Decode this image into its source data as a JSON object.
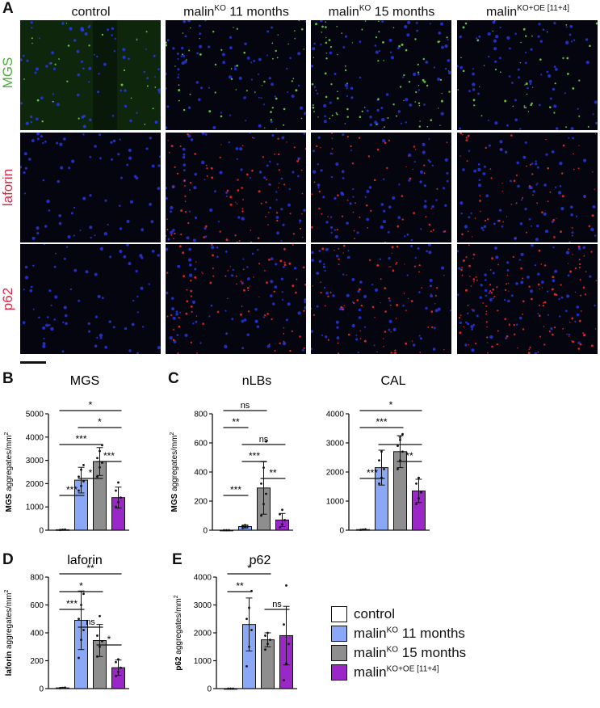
{
  "panel_A": {
    "letter": "A",
    "columns": [
      {
        "base": "control",
        "sup": "",
        "suffix": ""
      },
      {
        "base": "malin",
        "sup": "KO",
        "suffix": " 11 months"
      },
      {
        "base": "malin",
        "sup": "KO",
        "suffix": " 15 months"
      },
      {
        "base": "malin",
        "sup": "KO+OE [11+4]",
        "suffix": ""
      }
    ],
    "rows": [
      {
        "label": "MGS",
        "color": "#4caf3a",
        "dot": "#6fe04a"
      },
      {
        "label": "laforin",
        "color": "#d62a47",
        "dot": "#ff2a2a"
      },
      {
        "label": "p62",
        "color": "#d62a47",
        "dot": "#ff2a2a"
      }
    ],
    "nucleus_color": "#2a3cff",
    "signal_density": [
      [
        0.15,
        0.35,
        0.55,
        0.3
      ],
      [
        0.0,
        0.55,
        0.35,
        0.4
      ],
      [
        0.0,
        0.5,
        0.5,
        0.8
      ]
    ]
  },
  "legend": {
    "items": [
      {
        "base": "control",
        "sup": "",
        "suffix": "",
        "color": "#ffffff"
      },
      {
        "base": "malin",
        "sup": "KO",
        "suffix": " 11 months",
        "color": "#8aa8f5"
      },
      {
        "base": "malin",
        "sup": "KO",
        "suffix": " 15 months",
        "color": "#8e8e8e"
      },
      {
        "base": "malin",
        "sup": "KO+OE [11+4]",
        "suffix": "",
        "color": "#9b27c8"
      }
    ]
  },
  "chart_data": [
    {
      "panel": "B",
      "type": "bar",
      "title": "MGS",
      "ylabel_bold": "MGS",
      "ylabel_rest": " aggregates/mm",
      "ylabel_sup": "2",
      "ylim": [
        0,
        5000
      ],
      "yticks": [
        0,
        1000,
        2000,
        3000,
        4000,
        5000
      ],
      "categories": [
        "control",
        "malinKO 11 months",
        "malinKO 15 months",
        "malinKO+OE [11+4]"
      ],
      "values": [
        20,
        2150,
        2950,
        1400
      ],
      "errors": [
        10,
        550,
        600,
        450
      ],
      "points": [
        [
          10,
          20,
          30
        ],
        [
          1700,
          1900,
          2100,
          2300,
          2600,
          2800
        ],
        [
          2300,
          2700,
          2900,
          3100,
          3400,
          3650
        ],
        [
          1000,
          1200,
          1400,
          1700,
          2050
        ]
      ],
      "significance": [
        {
          "from": 0,
          "to": 3,
          "label": "*"
        },
        {
          "from": 1,
          "to": 3,
          "label": "*"
        },
        {
          "from": 0,
          "to": 2,
          "label": "***"
        },
        {
          "from": 2,
          "to": 3,
          "label": "***"
        },
        {
          "from": 1,
          "to": 2,
          "label": "*"
        },
        {
          "from": 0,
          "to": 1,
          "label": "***"
        }
      ]
    },
    {
      "panel": "C",
      "type": "bar",
      "title": "nLBs",
      "ylabel_bold": "MGS",
      "ylabel_rest": " aggregates/mm",
      "ylabel_sup": "2",
      "ylim": [
        0,
        800
      ],
      "yticks": [
        0,
        200,
        400,
        600,
        800
      ],
      "categories": [
        "control",
        "malinKO 11 months",
        "malinKO 15 months",
        "malinKO+OE [11+4]"
      ],
      "values": [
        0,
        25,
        290,
        70
      ],
      "errors": [
        0,
        10,
        180,
        45
      ],
      "points": [
        [
          0,
          0,
          0
        ],
        [
          15,
          20,
          25,
          30,
          35
        ],
        [
          100,
          180,
          250,
          320,
          430,
          610
        ],
        [
          20,
          40,
          70,
          110,
          140
        ]
      ],
      "significance": [
        {
          "from": 0,
          "to": 2,
          "label": "ns"
        },
        {
          "from": 0,
          "to": 1,
          "label": "**"
        },
        {
          "from": 1,
          "to": 3,
          "label": "ns"
        },
        {
          "from": 1,
          "to": 2,
          "label": "***"
        },
        {
          "from": 2,
          "to": 3,
          "label": "**"
        },
        {
          "from": 0,
          "to": 1,
          "label": "***"
        }
      ]
    },
    {
      "panel": "",
      "type": "bar",
      "title": "CAL",
      "ylabel_bold": "",
      "ylabel_rest": "",
      "ylabel_sup": "",
      "ylim": [
        0,
        4000
      ],
      "yticks": [
        0,
        1000,
        2000,
        3000,
        4000
      ],
      "categories": [
        "control",
        "malinKO 11 months",
        "malinKO 15 months",
        "malinKO+OE [11+4]"
      ],
      "values": [
        20,
        2150,
        2700,
        1350
      ],
      "errors": [
        10,
        600,
        550,
        400
      ],
      "points": [
        [
          10,
          20,
          30
        ],
        [
          1600,
          1800,
          2100,
          2400,
          2700
        ],
        [
          2100,
          2400,
          2700,
          2900,
          3100,
          3300
        ],
        [
          900,
          1100,
          1300,
          1600,
          1800
        ]
      ],
      "significance": [
        {
          "from": 0,
          "to": 3,
          "label": "*"
        },
        {
          "from": 0,
          "to": 2,
          "label": "***"
        },
        {
          "from": 1,
          "to": 3,
          "label": "*"
        },
        {
          "from": 2,
          "to": 3,
          "label": "**"
        },
        {
          "from": 0,
          "to": 1,
          "label": "***"
        }
      ]
    },
    {
      "panel": "D",
      "type": "bar",
      "title": "laforin",
      "ylabel_bold": "laforin",
      "ylabel_rest": " aggregates/mm",
      "ylabel_sup": "2",
      "ylim": [
        0,
        800
      ],
      "yticks": [
        0,
        200,
        400,
        600,
        800
      ],
      "categories": [
        "control",
        "malinKO 11 months",
        "malinKO 15 months",
        "malinKO+OE [11+4]"
      ],
      "values": [
        5,
        490,
        345,
        150
      ],
      "errors": [
        3,
        210,
        115,
        55
      ],
      "points": [
        [
          3,
          5,
          7
        ],
        [
          220,
          350,
          420,
          500,
          600,
          680
        ],
        [
          230,
          300,
          340,
          380,
          520
        ],
        [
          90,
          120,
          150,
          190,
          210
        ]
      ],
      "significance": [
        {
          "from": 0,
          "to": 3,
          "label": "**"
        },
        {
          "from": 0,
          "to": 2,
          "label": "*"
        },
        {
          "from": 0,
          "to": 1,
          "label": "***"
        },
        {
          "from": 1,
          "to": 2,
          "label": "ns"
        },
        {
          "from": 2,
          "to": 3,
          "label": "*"
        }
      ]
    },
    {
      "panel": "E",
      "type": "bar",
      "title": "p62",
      "ylabel_bold": "p62",
      "ylabel_rest": " aggregates/mm",
      "ylabel_sup": "2",
      "ylim": [
        0,
        4000
      ],
      "yticks": [
        0,
        1000,
        2000,
        3000,
        4000
      ],
      "categories": [
        "control",
        "malinKO 11 months",
        "malinKO 15 months",
        "malinKO+OE [11+4]"
      ],
      "values": [
        0,
        2300,
        1750,
        1900
      ],
      "errors": [
        0,
        950,
        250,
        1050
      ],
      "points": [
        [
          0,
          0,
          0
        ],
        [
          800,
          1500,
          2100,
          2500,
          2900,
          3500
        ],
        [
          1400,
          1600,
          1750,
          1900,
          2000
        ],
        [
          300,
          900,
          1600,
          2300,
          3700
        ]
      ],
      "significance": [
        {
          "from": 0,
          "to": 2,
          "label": "*"
        },
        {
          "from": 0,
          "to": 1,
          "label": "**"
        },
        {
          "from": 2,
          "to": 3,
          "label": "ns"
        }
      ]
    }
  ]
}
